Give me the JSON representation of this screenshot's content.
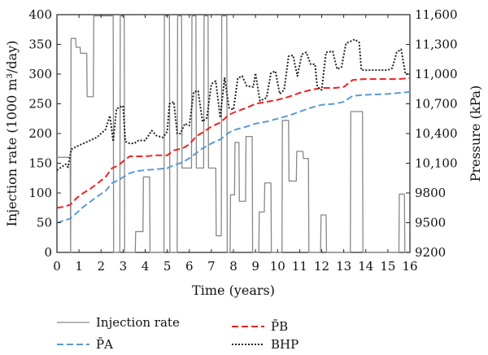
{
  "chart_data": {
    "type": "line",
    "xlabel": "Time (years)",
    "ylabel_left": "Injection rate (1000 m³/day)",
    "ylabel_right": "Pressure (kPa)",
    "xlim": [
      0,
      16
    ],
    "ylim_left": [
      0,
      400
    ],
    "ylim_right": [
      9200,
      11600
    ],
    "x_ticks": [
      "0",
      "1",
      "2",
      "3",
      "4",
      "5",
      "6",
      "7",
      "8",
      "9",
      "10",
      "11",
      "12",
      "13",
      "14",
      "15",
      "16"
    ],
    "y_left_ticks": [
      "0",
      "50",
      "100",
      "150",
      "200",
      "250",
      "300",
      "350",
      "400"
    ],
    "y_right_ticks": [
      "9200",
      "9500",
      "9800",
      "10,100",
      "10,400",
      "10,700",
      "11,000",
      "11,300",
      "11,600"
    ],
    "legend_position": "bottom",
    "colors": {
      "injection": "#888888",
      "pa": "#5b9bd5",
      "pb": "#ee2222",
      "bhp": "#222222"
    },
    "series": [
      {
        "name": "Injection rate",
        "axis": "left",
        "style": "solid",
        "points": [
          [
            0,
            160
          ],
          [
            0.6,
            160
          ],
          [
            0.62,
            0
          ],
          [
            0.64,
            360
          ],
          [
            0.85,
            360
          ],
          [
            0.87,
            345
          ],
          [
            1.05,
            345
          ],
          [
            1.07,
            335
          ],
          [
            1.35,
            335
          ],
          [
            1.37,
            262
          ],
          [
            1.65,
            262
          ],
          [
            1.67,
            398
          ],
          [
            2.35,
            398
          ],
          [
            2.37,
            398
          ],
          [
            2.55,
            398
          ],
          [
            2.57,
            0
          ],
          [
            2.85,
            0
          ],
          [
            2.87,
            398
          ],
          [
            3.05,
            398
          ],
          [
            3.07,
            0
          ],
          [
            3.55,
            0
          ],
          [
            3.57,
            35
          ],
          [
            3.9,
            35
          ],
          [
            3.92,
            127
          ],
          [
            4.2,
            127
          ],
          [
            4.22,
            0
          ],
          [
            4.85,
            0
          ],
          [
            4.87,
            398
          ],
          [
            5.1,
            398
          ],
          [
            5.12,
            0
          ],
          [
            5.45,
            0
          ],
          [
            5.47,
            398
          ],
          [
            5.65,
            398
          ],
          [
            5.67,
            142
          ],
          [
            6.1,
            142
          ],
          [
            6.12,
            398
          ],
          [
            6.3,
            398
          ],
          [
            6.32,
            142
          ],
          [
            6.65,
            142
          ],
          [
            6.67,
            398
          ],
          [
            6.85,
            398
          ],
          [
            6.87,
            142
          ],
          [
            7.2,
            142
          ],
          [
            7.22,
            28
          ],
          [
            7.45,
            28
          ],
          [
            7.47,
            398
          ],
          [
            7.7,
            398
          ],
          [
            7.72,
            0
          ],
          [
            7.85,
            0
          ],
          [
            7.87,
            97
          ],
          [
            8.05,
            97
          ],
          [
            8.07,
            185
          ],
          [
            8.25,
            185
          ],
          [
            8.27,
            86
          ],
          [
            8.55,
            86
          ],
          [
            8.57,
            195
          ],
          [
            8.85,
            195
          ],
          [
            8.87,
            0
          ],
          [
            9.15,
            0
          ],
          [
            9.17,
            68
          ],
          [
            9.4,
            68
          ],
          [
            9.42,
            117
          ],
          [
            9.7,
            117
          ],
          [
            9.72,
            0
          ],
          [
            10.2,
            0
          ],
          [
            10.22,
            222
          ],
          [
            10.5,
            222
          ],
          [
            10.52,
            120
          ],
          [
            10.85,
            120
          ],
          [
            10.87,
            170
          ],
          [
            11.15,
            170
          ],
          [
            11.17,
            158
          ],
          [
            11.4,
            158
          ],
          [
            11.42,
            0
          ],
          [
            11.95,
            0
          ],
          [
            11.97,
            63
          ],
          [
            12.2,
            63
          ],
          [
            12.22,
            0
          ],
          [
            12.65,
            0
          ],
          [
            12.67,
            0
          ],
          [
            13.3,
            0
          ],
          [
            13.32,
            237
          ],
          [
            13.85,
            237
          ],
          [
            13.87,
            0
          ],
          [
            14.3,
            0
          ],
          [
            14.32,
            0
          ],
          [
            15.05,
            0
          ],
          [
            15.07,
            0
          ],
          [
            15.5,
            0
          ],
          [
            15.52,
            98
          ],
          [
            15.75,
            98
          ],
          [
            15.77,
            0
          ],
          [
            16,
            0
          ]
        ]
      },
      {
        "name": "P̄A",
        "axis": "right",
        "style": "dashed",
        "points": [
          [
            0,
            9500
          ],
          [
            0.3,
            9520
          ],
          [
            0.6,
            9540
          ],
          [
            0.9,
            9600
          ],
          [
            1.2,
            9660
          ],
          [
            1.5,
            9710
          ],
          [
            1.8,
            9760
          ],
          [
            2.2,
            9820
          ],
          [
            2.5,
            9900
          ],
          [
            2.8,
            9930
          ],
          [
            3.0,
            9960
          ],
          [
            3.3,
            10000
          ],
          [
            3.6,
            10020
          ],
          [
            4.0,
            10030
          ],
          [
            4.5,
            10040
          ],
          [
            5.0,
            10050
          ],
          [
            5.3,
            10080
          ],
          [
            5.7,
            10110
          ],
          [
            6.0,
            10150
          ],
          [
            6.3,
            10200
          ],
          [
            6.6,
            10250
          ],
          [
            7.0,
            10300
          ],
          [
            7.4,
            10340
          ],
          [
            7.8,
            10410
          ],
          [
            8.1,
            10440
          ],
          [
            8.6,
            10470
          ],
          [
            9.0,
            10500
          ],
          [
            9.5,
            10520
          ],
          [
            10.0,
            10550
          ],
          [
            10.5,
            10580
          ],
          [
            11.0,
            10620
          ],
          [
            11.5,
            10660
          ],
          [
            12.0,
            10690
          ],
          [
            12.6,
            10700
          ],
          [
            13.0,
            10720
          ],
          [
            13.4,
            10780
          ],
          [
            13.9,
            10790
          ],
          [
            14.5,
            10795
          ],
          [
            15.0,
            10800
          ],
          [
            15.5,
            10810
          ],
          [
            16,
            10820
          ]
        ]
      },
      {
        "name": "P̄B",
        "axis": "right",
        "style": "dashed",
        "points": [
          [
            0,
            9650
          ],
          [
            0.3,
            9660
          ],
          [
            0.6,
            9680
          ],
          [
            0.9,
            9750
          ],
          [
            1.2,
            9800
          ],
          [
            1.5,
            9840
          ],
          [
            1.8,
            9890
          ],
          [
            2.2,
            9960
          ],
          [
            2.5,
            10050
          ],
          [
            2.8,
            10080
          ],
          [
            3.0,
            10120
          ],
          [
            3.3,
            10170
          ],
          [
            3.6,
            10170
          ],
          [
            4.0,
            10170
          ],
          [
            4.5,
            10180
          ],
          [
            5.0,
            10180
          ],
          [
            5.3,
            10230
          ],
          [
            5.7,
            10250
          ],
          [
            6.0,
            10290
          ],
          [
            6.3,
            10370
          ],
          [
            6.6,
            10410
          ],
          [
            7.0,
            10470
          ],
          [
            7.4,
            10510
          ],
          [
            7.8,
            10590
          ],
          [
            8.1,
            10620
          ],
          [
            8.6,
            10660
          ],
          [
            9.0,
            10700
          ],
          [
            9.5,
            10720
          ],
          [
            10.0,
            10740
          ],
          [
            10.5,
            10770
          ],
          [
            11.0,
            10810
          ],
          [
            11.5,
            10840
          ],
          [
            12.0,
            10860
          ],
          [
            12.6,
            10860
          ],
          [
            13.0,
            10870
          ],
          [
            13.4,
            10940
          ],
          [
            13.9,
            10950
          ],
          [
            14.5,
            10950
          ],
          [
            15.0,
            10950
          ],
          [
            15.5,
            10950
          ],
          [
            16,
            10960
          ]
        ]
      },
      {
        "name": "BHP",
        "axis": "right",
        "style": "dotted",
        "points": [
          [
            0,
            10030
          ],
          [
            0.2,
            10060
          ],
          [
            0.4,
            10090
          ],
          [
            0.5,
            10060
          ],
          [
            0.65,
            10240
          ],
          [
            0.9,
            10270
          ],
          [
            1.2,
            10300
          ],
          [
            1.5,
            10330
          ],
          [
            1.8,
            10360
          ],
          [
            2.0,
            10400
          ],
          [
            2.2,
            10440
          ],
          [
            2.4,
            10580
          ],
          [
            2.55,
            10320
          ],
          [
            2.7,
            10650
          ],
          [
            3.0,
            10680
          ],
          [
            3.1,
            10320
          ],
          [
            3.3,
            10300
          ],
          [
            3.5,
            10300
          ],
          [
            3.7,
            10330
          ],
          [
            4.0,
            10330
          ],
          [
            4.3,
            10430
          ],
          [
            4.5,
            10380
          ],
          [
            4.8,
            10360
          ],
          [
            5.0,
            10420
          ],
          [
            5.1,
            10700
          ],
          [
            5.3,
            10720
          ],
          [
            5.45,
            10400
          ],
          [
            5.6,
            10400
          ],
          [
            5.8,
            10500
          ],
          [
            6.0,
            10480
          ],
          [
            6.2,
            10820
          ],
          [
            6.4,
            10830
          ],
          [
            6.6,
            10520
          ],
          [
            6.8,
            10560
          ],
          [
            7.0,
            10900
          ],
          [
            7.2,
            10930
          ],
          [
            7.4,
            10560
          ],
          [
            7.6,
            10960
          ],
          [
            7.8,
            10660
          ],
          [
            8.0,
            10640
          ],
          [
            8.2,
            10960
          ],
          [
            8.4,
            10980
          ],
          [
            8.6,
            10880
          ],
          [
            8.9,
            10870
          ],
          [
            9.0,
            11010
          ],
          [
            9.2,
            10730
          ],
          [
            9.5,
            10760
          ],
          [
            9.7,
            11010
          ],
          [
            9.9,
            11030
          ],
          [
            10.1,
            10800
          ],
          [
            10.3,
            10840
          ],
          [
            10.5,
            11180
          ],
          [
            10.7,
            11190
          ],
          [
            10.9,
            10980
          ],
          [
            11.1,
            11200
          ],
          [
            11.3,
            11220
          ],
          [
            11.5,
            11100
          ],
          [
            11.7,
            11100
          ],
          [
            11.8,
            10870
          ],
          [
            12.0,
            10840
          ],
          [
            12.2,
            11220
          ],
          [
            12.5,
            11230
          ],
          [
            12.7,
            11050
          ],
          [
            12.9,
            11070
          ],
          [
            13.1,
            11310
          ],
          [
            13.5,
            11350
          ],
          [
            13.7,
            11320
          ],
          [
            13.8,
            11040
          ],
          [
            14.2,
            11040
          ],
          [
            14.6,
            11040
          ],
          [
            15.0,
            11040
          ],
          [
            15.2,
            11060
          ],
          [
            15.4,
            11220
          ],
          [
            15.6,
            11250
          ],
          [
            15.8,
            11000
          ],
          [
            16,
            11000
          ]
        ]
      }
    ]
  }
}
